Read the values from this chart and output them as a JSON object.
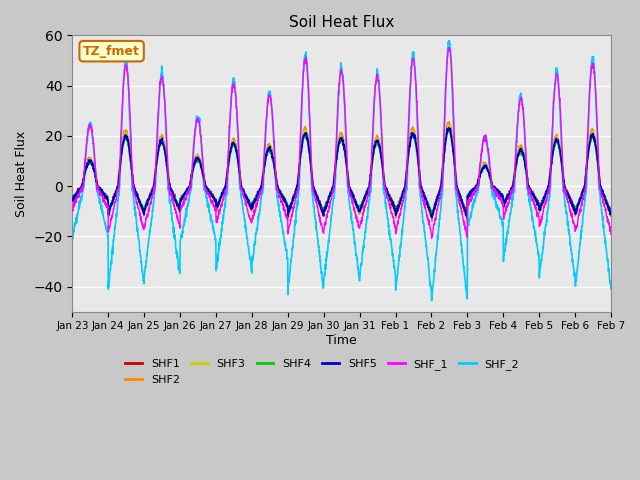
{
  "title": "Soil Heat Flux",
  "ylabel": "Soil Heat Flux",
  "xlabel": "Time",
  "ylim": [
    -50,
    60
  ],
  "n_days": 15,
  "samples_per_day": 144,
  "series_colors": {
    "SHF1": "#cc0000",
    "SHF2": "#ff8800",
    "SHF3": "#cccc00",
    "SHF4": "#00cc00",
    "SHF5": "#0000cc",
    "SHF_1": "#ff00ff",
    "SHF_2": "#00ccff"
  },
  "annotation_text": "TZ_fmet",
  "annotation_color": "#cc6600",
  "annotation_bg": "#ffffcc",
  "tick_labels": [
    "Jan 23",
    "Jan 24",
    "Jan 25",
    "Jan 26",
    "Jan 27",
    "Jan 28",
    "Jan 29",
    "Jan 30",
    "Jan 31",
    "Feb 1",
    "Feb 2",
    "Feb 3",
    "Feb 4",
    "Feb 5",
    "Feb 6",
    "Feb 7"
  ],
  "fig_bg": "#c8c8c8",
  "plot_bg": "#e8e8e8",
  "grid_color": "#ffffff",
  "linewidth_thin": 1.0,
  "linewidth_cyan": 1.2,
  "legend_ncol_row1": 6,
  "day_peak_amps": [
    0.5,
    1.0,
    0.9,
    0.55,
    0.85,
    0.75,
    1.05,
    0.95,
    0.9,
    1.05,
    1.15,
    0.4,
    0.72,
    0.92,
    1.02,
    1.0
  ]
}
